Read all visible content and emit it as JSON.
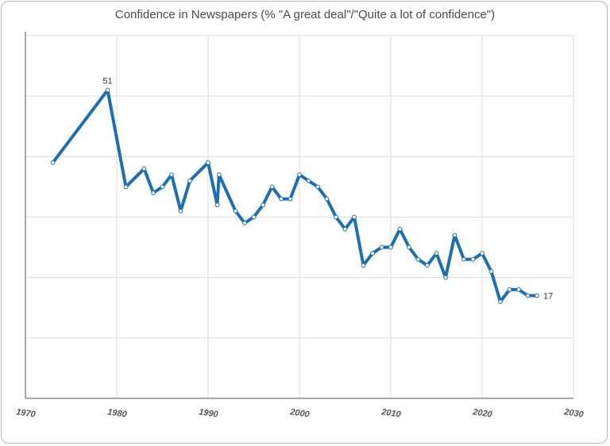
{
  "chart_data": {
    "type": "line",
    "title": "Confidence in Newspapers (% \"A great deal\"/\"Quite a lot of confidence\")",
    "xlabel": "",
    "ylabel": "",
    "xlim": [
      1970,
      2030
    ],
    "ylim": [
      0,
      60
    ],
    "x_ticks": [
      "1970",
      "1980",
      "1990",
      "2000",
      "2010",
      "2020",
      "2030"
    ],
    "grid": true,
    "series": [
      {
        "color": "#1b6fb5",
        "x": [
          1973,
          1979,
          1981,
          1983,
          1984,
          1985,
          1986,
          1987,
          1988,
          1990,
          1991,
          1991.2,
          1993,
          1994,
          1995,
          1996,
          1997,
          1998,
          1999,
          2000,
          2001,
          2002,
          2003,
          2004,
          2005,
          2006,
          2007,
          2008,
          2009,
          2010,
          2011,
          2012,
          2013,
          2014,
          2015,
          2016,
          2017,
          2018,
          2019,
          2020,
          2021,
          2022,
          2023,
          2024,
          2025,
          2026
        ],
        "y": [
          39,
          51,
          35,
          38,
          34,
          35,
          37,
          31,
          36,
          39,
          32,
          37,
          31,
          29,
          30,
          32,
          35,
          33,
          33,
          37,
          36,
          35,
          33,
          30,
          28,
          30,
          22,
          24,
          25,
          25,
          28,
          25,
          23,
          22,
          24,
          20,
          27,
          23,
          23,
          24,
          21,
          16,
          18,
          18,
          17,
          17
        ]
      }
    ],
    "annotations": [
      {
        "x": 1979,
        "y": 51,
        "text": "51"
      },
      {
        "x": 2026,
        "y": 17,
        "text": "17"
      }
    ]
  }
}
